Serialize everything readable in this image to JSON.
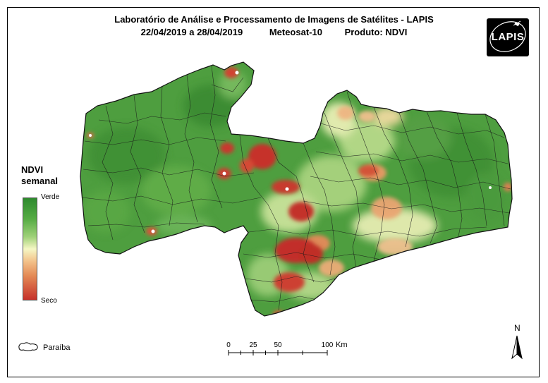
{
  "header": {
    "title": "Laboratório de Análise e Processamento de Imagens de Satélites - LAPIS",
    "date_range": "22/04/2019  a 28/04/2019",
    "satellite": "Meteosat-10",
    "product": "Produto: NDVI"
  },
  "logo": {
    "text": "LAPIS"
  },
  "legend": {
    "title_line1": "NDVI",
    "title_line2": "semanal",
    "top_label": "Verde",
    "bottom_label": "Seco",
    "colors": [
      "#2e8a2e",
      "#54ab43",
      "#9fd178",
      "#f5f7c4",
      "#f3c28a",
      "#e48b56",
      "#c6312a"
    ]
  },
  "inset": {
    "label": "Paraíba"
  },
  "scale": {
    "ticks": [
      "0",
      "25",
      "50",
      "100"
    ],
    "unit": "Km"
  },
  "north": {
    "label": "N"
  }
}
